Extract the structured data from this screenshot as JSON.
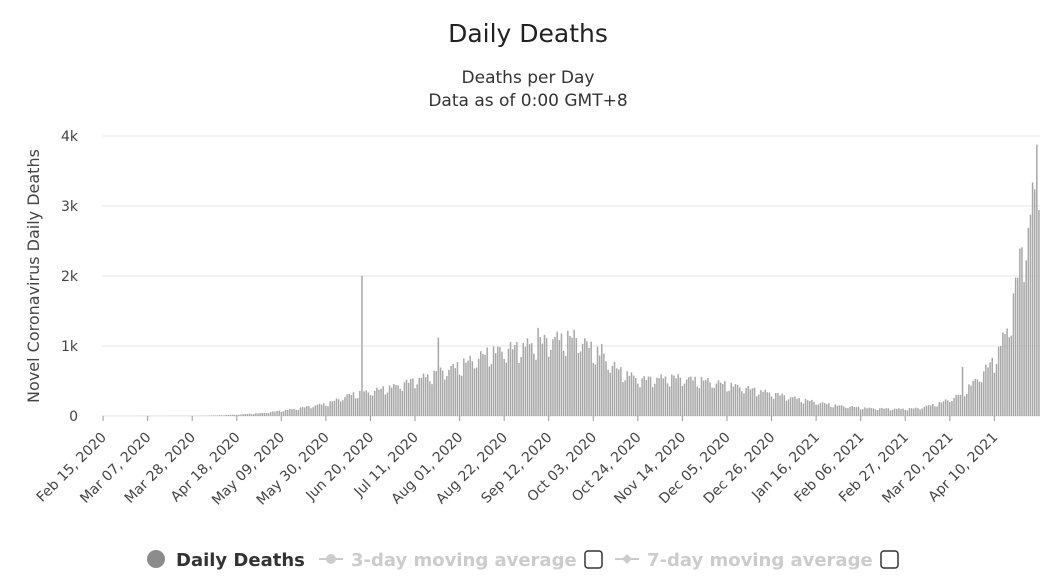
{
  "chart_data": {
    "type": "bar",
    "title": "Daily Deaths",
    "subtitle_lines": [
      "Deaths per Day",
      "Data as of 0:00 GMT+8"
    ],
    "xlabel": "",
    "ylabel": "Novel Coronavirus Daily Deaths",
    "ylim": [
      0,
      4000
    ],
    "yticks": [
      {
        "value": 0,
        "label": "0"
      },
      {
        "value": 1000,
        "label": "1k"
      },
      {
        "value": 2000,
        "label": "2k"
      },
      {
        "value": 3000,
        "label": "3k"
      },
      {
        "value": 4000,
        "label": "4k"
      }
    ],
    "grid": true,
    "bar_color": "#a6a6a6",
    "grid_color": "#e6e6e6",
    "start_date": "2020-02-15",
    "end_date": "2021-05-01",
    "xtick_dates": [
      "2020-02-15",
      "2020-03-07",
      "2020-03-28",
      "2020-04-18",
      "2020-05-09",
      "2020-05-30",
      "2020-06-20",
      "2020-07-11",
      "2020-08-01",
      "2020-08-22",
      "2020-09-12",
      "2020-10-03",
      "2020-10-24",
      "2020-11-14",
      "2020-12-05",
      "2020-12-26",
      "2021-01-16",
      "2021-02-06",
      "2021-02-27",
      "2021-03-20",
      "2021-04-10"
    ],
    "xtick_labels": [
      "Feb 15, 2020",
      "Mar 07, 2020",
      "Mar 28, 2020",
      "Apr 18, 2020",
      "May 09, 2020",
      "May 30, 2020",
      "Jun 20, 2020",
      "Jul 11, 2020",
      "Aug 01, 2020",
      "Aug 22, 2020",
      "Sep 12, 2020",
      "Oct 03, 2020",
      "Oct 24, 2020",
      "Nov 14, 2020",
      "Dec 05, 2020",
      "Dec 26, 2020",
      "Jan 16, 2021",
      "Feb 06, 2021",
      "Feb 27, 2021",
      "Mar 20, 2021",
      "Apr 10, 2021"
    ],
    "trend_points": [
      [
        "2020-02-15",
        0
      ],
      [
        "2020-04-01",
        3
      ],
      [
        "2020-04-15",
        15
      ],
      [
        "2020-04-30",
        40
      ],
      [
        "2020-05-15",
        100
      ],
      [
        "2020-05-31",
        180
      ],
      [
        "2020-06-10",
        300
      ],
      [
        "2020-06-22",
        360
      ],
      [
        "2020-07-01",
        420
      ],
      [
        "2020-07-15",
        550
      ],
      [
        "2020-08-01",
        720
      ],
      [
        "2020-08-15",
        900
      ],
      [
        "2020-09-01",
        1000
      ],
      [
        "2020-09-15",
        1100
      ],
      [
        "2020-09-25",
        1120
      ],
      [
        "2020-10-05",
        900
      ],
      [
        "2020-10-15",
        650
      ],
      [
        "2020-10-25",
        520
      ],
      [
        "2020-11-10",
        550
      ],
      [
        "2020-11-25",
        500
      ],
      [
        "2020-12-10",
        420
      ],
      [
        "2020-12-25",
        330
      ],
      [
        "2021-01-10",
        230
      ],
      [
        "2021-01-25",
        150
      ],
      [
        "2021-02-10",
        110
      ],
      [
        "2021-02-25",
        100
      ],
      [
        "2021-03-05",
        110
      ],
      [
        "2021-03-15",
        180
      ],
      [
        "2021-03-25",
        300
      ],
      [
        "2021-04-01",
        500
      ],
      [
        "2021-04-10",
        800
      ],
      [
        "2021-04-17",
        1300
      ],
      [
        "2021-04-22",
        2200
      ],
      [
        "2021-04-27",
        2800
      ],
      [
        "2021-04-29",
        3300
      ],
      [
        "2021-04-30",
        3640
      ],
      [
        "2021-05-01",
        3500
      ]
    ],
    "spikes": [
      {
        "date": "2020-06-16",
        "value": 2000
      },
      {
        "date": "2020-07-22",
        "value": 1120
      },
      {
        "date": "2020-10-07",
        "value": 1030
      },
      {
        "date": "2020-09-07",
        "value": 1260
      },
      {
        "date": "2021-03-26",
        "value": 700
      }
    ],
    "legend": {
      "items": [
        {
          "label": "Daily Deaths",
          "color": "#8c8c8c",
          "active": true,
          "has_checkbox": false
        },
        {
          "label": "3-day moving average",
          "color": "#cccccc",
          "active": false,
          "has_checkbox": true
        },
        {
          "label": "7-day moving average",
          "color": "#cccccc",
          "active": false,
          "has_checkbox": true
        }
      ]
    }
  }
}
